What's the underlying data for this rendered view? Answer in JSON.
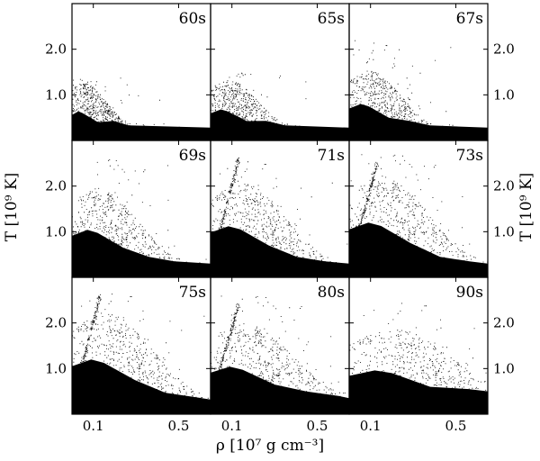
{
  "chart_data": {
    "type": "scatter",
    "layout": "3x3 small multiples",
    "xlabel": "ρ [10⁷ g cm⁻³]",
    "ylabel": "T [10⁹ K]",
    "xlim": [
      0.0,
      0.65
    ],
    "ylim": [
      0.0,
      3.0
    ],
    "x_ticks": [
      {
        "value": 0.1,
        "label": "0.1"
      },
      {
        "value": 0.5,
        "label": "0.5"
      }
    ],
    "y_ticks": [
      {
        "value": 1.0,
        "label": "1.0"
      },
      {
        "value": 2.0,
        "label": "2.0"
      }
    ],
    "marker_color": "#000000",
    "panels": [
      {
        "label": "60s",
        "peak_x": 0.05,
        "peak_T": 1.4,
        "body_T": 0.8,
        "tail_T": 0.28,
        "spread_x": 0.12,
        "arc": false,
        "arc_top": 0
      },
      {
        "label": "65s",
        "peak_x": 0.08,
        "peak_T": 1.5,
        "body_T": 0.85,
        "tail_T": 0.28,
        "spread_x": 0.15,
        "arc": false,
        "arc_top": 0
      },
      {
        "label": "67s",
        "peak_x": 0.09,
        "peak_T": 2.2,
        "body_T": 1.0,
        "tail_T": 0.28,
        "spread_x": 0.16,
        "arc": false,
        "arc_top": 0
      },
      {
        "label": "69s",
        "peak_x": 0.12,
        "peak_T": 2.6,
        "body_T": 1.3,
        "tail_T": 0.3,
        "spread_x": 0.2,
        "arc": false,
        "arc_top": 0
      },
      {
        "label": "71s",
        "peak_x": 0.14,
        "peak_T": 2.6,
        "body_T": 1.4,
        "tail_T": 0.3,
        "spread_x": 0.22,
        "arc": true,
        "arc_top": 2.6
      },
      {
        "label": "73s",
        "peak_x": 0.15,
        "peak_T": 2.7,
        "body_T": 1.5,
        "tail_T": 0.3,
        "spread_x": 0.23,
        "arc": true,
        "arc_top": 2.5
      },
      {
        "label": "75s",
        "peak_x": 0.15,
        "peak_T": 2.7,
        "body_T": 1.5,
        "tail_T": 0.32,
        "spread_x": 0.24,
        "arc": true,
        "arc_top": 2.6
      },
      {
        "label": "80s",
        "peak_x": 0.15,
        "peak_T": 2.6,
        "body_T": 1.3,
        "tail_T": 0.35,
        "spread_x": 0.25,
        "arc": true,
        "arc_top": 2.4
      },
      {
        "label": "90s",
        "peak_x": 0.2,
        "peak_T": 2.5,
        "body_T": 1.2,
        "tail_T": 0.4,
        "spread_x": 0.3,
        "arc": false,
        "arc_top": 0
      }
    ]
  }
}
